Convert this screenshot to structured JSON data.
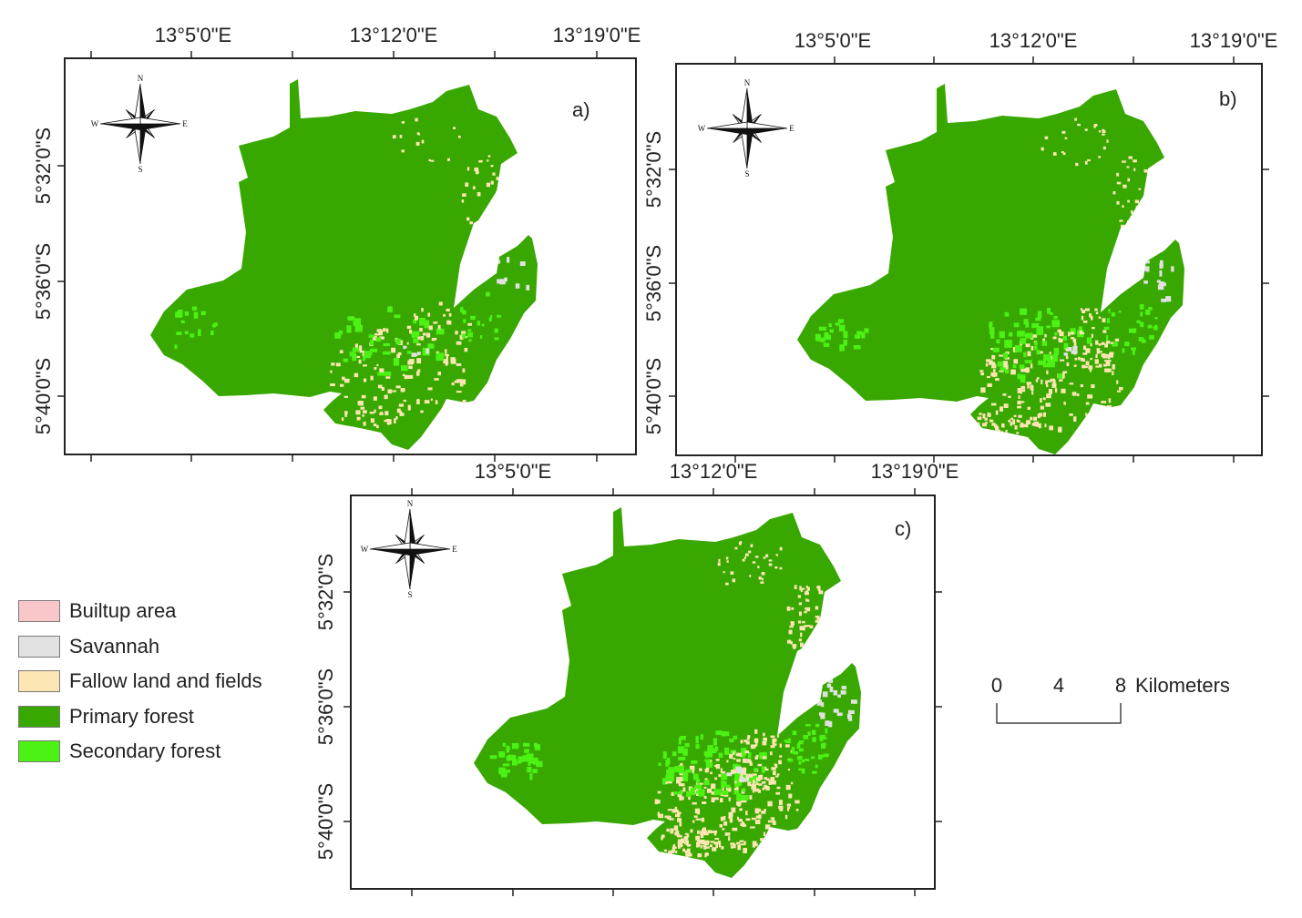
{
  "panels": [
    {
      "label": "a)",
      "top_ticks": [
        "13°5'0\"E",
        "13°12'0\"E",
        "13°19'0\"E"
      ],
      "left_ticks": [],
      "side_ticks": [
        "5°32'0\"S",
        "5°36'0\"S",
        "5°40'0\"S"
      ],
      "bottom_ticks": []
    },
    {
      "label": "b)",
      "top_ticks": [
        "13°5'0\"E",
        "13°12'0\"E",
        "13°19'0\"E"
      ],
      "side_ticks": [
        "5°32'0\"S",
        "5°36'0\"S",
        "5°40'0\"S"
      ],
      "bottom_ticks": []
    },
    {
      "label": "c)",
      "top_ticks": [
        "13°5'0\"E",
        "13°12'0\"E",
        "13°19'0\"E"
      ],
      "side_ticks": [
        "5°32'0\"S",
        "5°36'0\"S",
        "5°40'0\"S"
      ],
      "bottom_ticks": []
    }
  ],
  "compass": {
    "n": "N",
    "s": "S",
    "e": "E",
    "w": "W"
  },
  "legend": [
    {
      "label": "Builtup area",
      "color": "#f9c6c9"
    },
    {
      "label": "Savannah",
      "color": "#e1e1e1"
    },
    {
      "label": "Fallow land and fields",
      "color": "#fbe5b2"
    },
    {
      "label": "Primary forest",
      "color": "#38a800"
    },
    {
      "label": "Secondary forest",
      "color": "#4cf213"
    }
  ],
  "scale_bar": {
    "ticks": [
      "0",
      "4",
      "8"
    ],
    "unit": "Kilometers"
  },
  "colors": {
    "primary": "#38a800",
    "secondary": "#4cf213",
    "fallow": "#fbe5b2",
    "savannah": "#e1e1e1",
    "frame": "#222222"
  }
}
